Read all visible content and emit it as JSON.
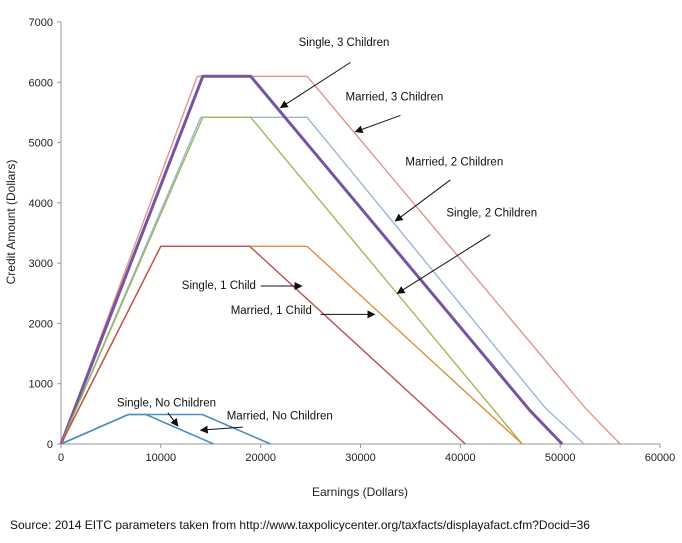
{
  "chart_data": {
    "type": "line",
    "title": "",
    "xlabel": "Earnings (Dollars)",
    "ylabel": "Credit Amount (Dollars)",
    "xlim": [
      0,
      60000
    ],
    "ylim": [
      0,
      7000
    ],
    "x_ticks": [
      "0",
      "10000",
      "20000",
      "30000",
      "40000",
      "50000",
      "60000"
    ],
    "y_ticks": [
      "0",
      "1000",
      "2000",
      "3000",
      "4000",
      "5000",
      "6000",
      "7000"
    ],
    "grid": false,
    "series": [
      {
        "name": "Married, 3 Children",
        "color": "#e0958d",
        "width": 1.4,
        "points": [
          [
            0,
            0
          ],
          [
            13650,
            6100
          ],
          [
            24650,
            6100
          ],
          [
            52500,
            600
          ],
          [
            56000,
            0
          ]
        ]
      },
      {
        "name": "Married, 2 Children",
        "color": "#9cb5d8",
        "width": 1.4,
        "points": [
          [
            0,
            0
          ],
          [
            14000,
            5420
          ],
          [
            24650,
            5420
          ],
          [
            48500,
            600
          ],
          [
            52400,
            0
          ]
        ]
      },
      {
        "name": "Single, 3 Children",
        "color": "#7654a0",
        "width": 3,
        "points": [
          [
            0,
            0
          ],
          [
            14200,
            6100
          ],
          [
            19000,
            6100
          ],
          [
            47000,
            550
          ],
          [
            50200,
            0
          ]
        ]
      },
      {
        "name": "Single, 2 Children",
        "color": "#9cbb59",
        "width": 1.4,
        "points": [
          [
            0,
            0
          ],
          [
            14200,
            5420
          ],
          [
            19000,
            5420
          ],
          [
            46200,
            0
          ]
        ]
      },
      {
        "name": "Married, 1 Child",
        "color": "#e48d3f",
        "width": 1.4,
        "points": [
          [
            0,
            0
          ],
          [
            10000,
            3280
          ],
          [
            24650,
            3280
          ],
          [
            46200,
            0
          ]
        ]
      },
      {
        "name": "Single, 1 Child",
        "color": "#c0504d",
        "width": 1.4,
        "points": [
          [
            0,
            0
          ],
          [
            10000,
            3280
          ],
          [
            18900,
            3280
          ],
          [
            40500,
            0
          ]
        ]
      },
      {
        "name": "Married, No Children",
        "color": "#4f8fbf",
        "width": 1.6,
        "points": [
          [
            0,
            0
          ],
          [
            6750,
            490
          ],
          [
            14150,
            490
          ],
          [
            21000,
            0
          ]
        ]
      },
      {
        "name": "Single, No Children",
        "color": "#4f8fbf",
        "width": 1.6,
        "points": [
          [
            0,
            0
          ],
          [
            6750,
            490
          ],
          [
            8500,
            490
          ],
          [
            15300,
            0
          ]
        ]
      }
    ],
    "annotations": [
      {
        "text": "Single, 3 Children",
        "text_at": [
          23800,
          6600
        ],
        "text_anchor": "start",
        "arrow_from": [
          29000,
          6330
        ],
        "arrow_to": [
          22000,
          5580
        ]
      },
      {
        "text": "Married, 3 Children",
        "text_at": [
          28500,
          5700
        ],
        "text_anchor": "start",
        "arrow_from": [
          34000,
          5450
        ],
        "arrow_to": [
          29500,
          5180
        ]
      },
      {
        "text": "Married, 2 Children",
        "text_at": [
          34500,
          4620
        ],
        "text_anchor": "start",
        "arrow_from": [
          39000,
          4380
        ],
        "arrow_to": [
          33500,
          3700
        ]
      },
      {
        "text": "Single, 2 Children",
        "text_at": [
          38600,
          3770
        ],
        "text_anchor": "start",
        "arrow_from": [
          43000,
          3470
        ],
        "arrow_to": [
          33700,
          2500
        ]
      },
      {
        "text": "Single, 1 Child",
        "text_at": [
          12100,
          2570
        ],
        "text_anchor": "start",
        "arrow_from": [
          20000,
          2620
        ],
        "arrow_to": [
          24100,
          2620
        ]
      },
      {
        "text": "Married, 1 Child",
        "text_at": [
          17000,
          2160
        ],
        "text_anchor": "start",
        "arrow_from": [
          26000,
          2150
        ],
        "arrow_to": [
          31400,
          2150
        ]
      },
      {
        "text": "Single, No Children",
        "text_at": [
          5600,
          620
        ],
        "text_anchor": "start",
        "arrow_from": [
          10700,
          520
        ],
        "arrow_to": [
          11700,
          300
        ]
      },
      {
        "text": "Married, No Children",
        "text_at": [
          16600,
          410
        ],
        "text_anchor": "start",
        "arrow_from": [
          18200,
          280
        ],
        "arrow_to": [
          14000,
          230
        ]
      }
    ]
  },
  "source_text": "Source: 2014 EITC parameters taken from http://www.taxpolicycenter.org/taxfacts/displayafact.cfm?Docid=36"
}
